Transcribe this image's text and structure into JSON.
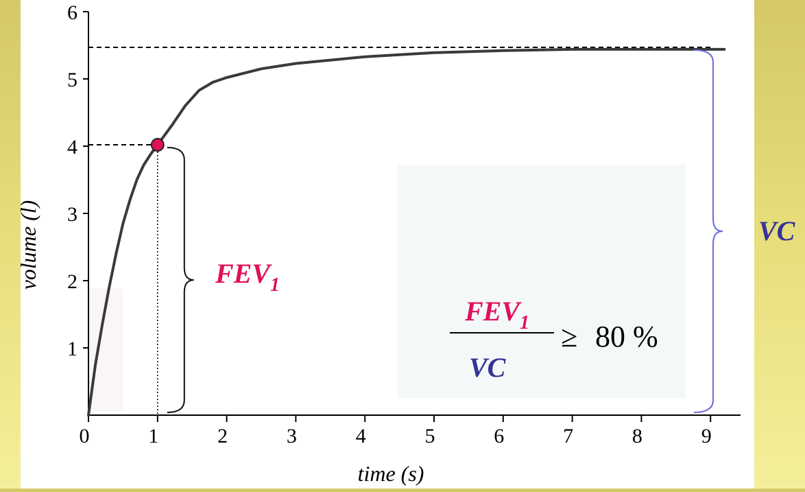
{
  "chart_data": {
    "type": "line",
    "xlabel": "time (s)",
    "ylabel": "volume (l)",
    "xlim": [
      0,
      9.5
    ],
    "ylim": [
      0,
      6
    ],
    "x_ticks": [
      "0",
      "1",
      "2",
      "3",
      "4",
      "5",
      "6",
      "7",
      "8",
      "9"
    ],
    "y_ticks": [
      "1",
      "2",
      "3",
      "4",
      "5",
      "6"
    ],
    "grid": false,
    "series": [
      {
        "x": [
          0,
          0.1,
          0.2,
          0.3,
          0.4,
          0.5,
          0.6,
          0.7,
          0.8,
          0.9,
          1.0,
          1.2,
          1.4,
          1.6,
          1.8,
          2.0,
          2.5,
          3.0,
          4.0,
          5.0,
          6.0,
          7.0,
          8.0,
          9.0,
          9.2
        ],
        "y": [
          0,
          0.75,
          1.35,
          1.9,
          2.4,
          2.85,
          3.2,
          3.5,
          3.72,
          3.88,
          4.02,
          4.3,
          4.6,
          4.83,
          4.95,
          5.02,
          5.15,
          5.23,
          5.33,
          5.39,
          5.42,
          5.44,
          5.44,
          5.44,
          5.44
        ]
      }
    ],
    "marked_point": {
      "x": 1.0,
      "y": 4.02
    },
    "vc_level": 5.47,
    "colors": {
      "curve": "#3a3a3a",
      "fev1": "#e0105a",
      "vc": "#333399",
      "vc_brace": "#6a6ae0"
    }
  },
  "annotations": {
    "fev1_label": "FEV",
    "fev1_subscript": "1",
    "vc_label": "VC",
    "ratio_numerator": "FEV",
    "ratio_numerator_subscript": "1",
    "ratio_denominator": "VC",
    "ratio_operator": "≥",
    "ratio_value": "80 %"
  }
}
